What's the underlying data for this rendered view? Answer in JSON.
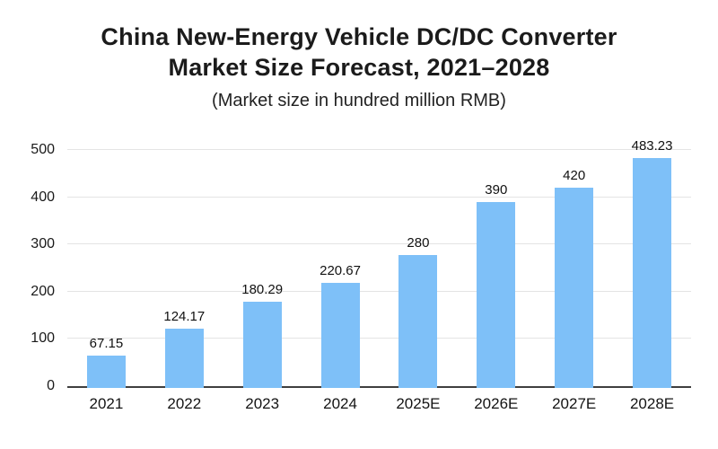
{
  "title_line1": "China New-Energy Vehicle DC/DC Converter",
  "title_line2": "Market Size Forecast, 2021–2028",
  "subtitle": "(Market size in hundred million RMB)",
  "chart_data": {
    "type": "bar",
    "title": "China New-Energy Vehicle DC/DC Converter Market Size Forecast, 2021–2028",
    "subtitle": "(Market size in hundred million RMB)",
    "categories": [
      "2021",
      "2022",
      "2023",
      "2024",
      "2025E",
      "2026E",
      "2027E",
      "2028E"
    ],
    "values": [
      67.15,
      124.17,
      180.29,
      220.67,
      280,
      390,
      420,
      483.23
    ],
    "value_labels": [
      "67.15",
      "124.17",
      "180.29",
      "220.67",
      "280",
      "390",
      "420",
      "483.23"
    ],
    "xlabel": "",
    "ylabel": "",
    "ylim": [
      0,
      500
    ],
    "yticks": [
      0,
      100,
      200,
      300,
      400,
      500
    ],
    "grid": true,
    "legend": "none",
    "bar_color": "#7EC0F8",
    "gridline_color": "#e4e4e4",
    "axis_line_color": "#3f3f3f"
  }
}
